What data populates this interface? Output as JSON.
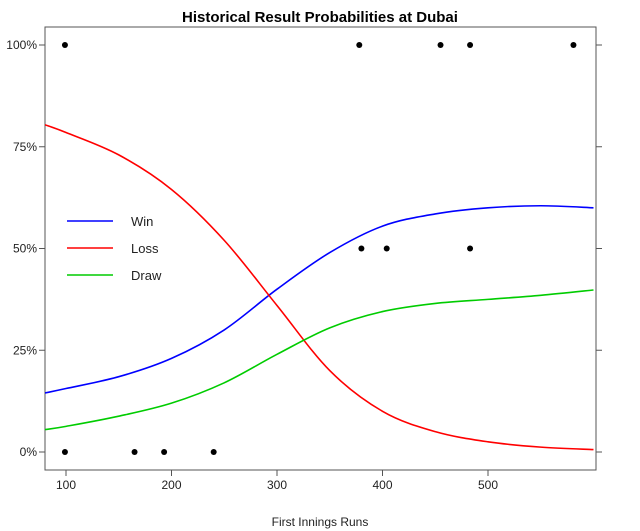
{
  "chart_data": {
    "type": "line",
    "title": "Historical Result Probabilities at Dubai",
    "xlabel": "First Innings Runs",
    "ylabel": "",
    "xlim": [
      80,
      600
    ],
    "ylim": [
      0,
      100
    ],
    "x_ticks": [
      100,
      200,
      300,
      400,
      500
    ],
    "y_ticks": [
      0,
      25,
      50,
      75,
      100
    ],
    "y_tick_labels": [
      "0%",
      "25%",
      "50%",
      "75%",
      "100%"
    ],
    "grid": false,
    "legend_position": "left",
    "series": [
      {
        "name": "Win",
        "color": "#0000ff",
        "x": [
          80,
          100,
          150,
          200,
          250,
          300,
          350,
          400,
          450,
          500,
          550,
          600
        ],
        "values": [
          14.5,
          15.6,
          18.5,
          23,
          30,
          40,
          49,
          55.5,
          58.5,
          60,
          60.5,
          60
        ]
      },
      {
        "name": "Loss",
        "color": "#ff0000",
        "x": [
          80,
          100,
          150,
          200,
          250,
          300,
          350,
          400,
          450,
          500,
          550,
          600
        ],
        "values": [
          80.4,
          78.5,
          73,
          64.5,
          52,
          36,
          20,
          10,
          5,
          2.5,
          1.2,
          0.6
        ]
      },
      {
        "name": "Draw",
        "color": "#00cc00",
        "x": [
          80,
          100,
          150,
          200,
          250,
          300,
          350,
          400,
          450,
          500,
          550,
          600
        ],
        "values": [
          5.5,
          6.3,
          8.8,
          12,
          17,
          24,
          30.5,
          34.5,
          36.5,
          37.5,
          38.5,
          39.8
        ]
      }
    ],
    "points": {
      "color": "#000000",
      "x": [
        99,
        378,
        455,
        483,
        581,
        380,
        404,
        483,
        99,
        165,
        193,
        240
      ],
      "values": [
        100,
        100,
        100,
        100,
        100,
        50,
        50,
        50,
        0,
        0,
        0,
        0
      ]
    }
  }
}
